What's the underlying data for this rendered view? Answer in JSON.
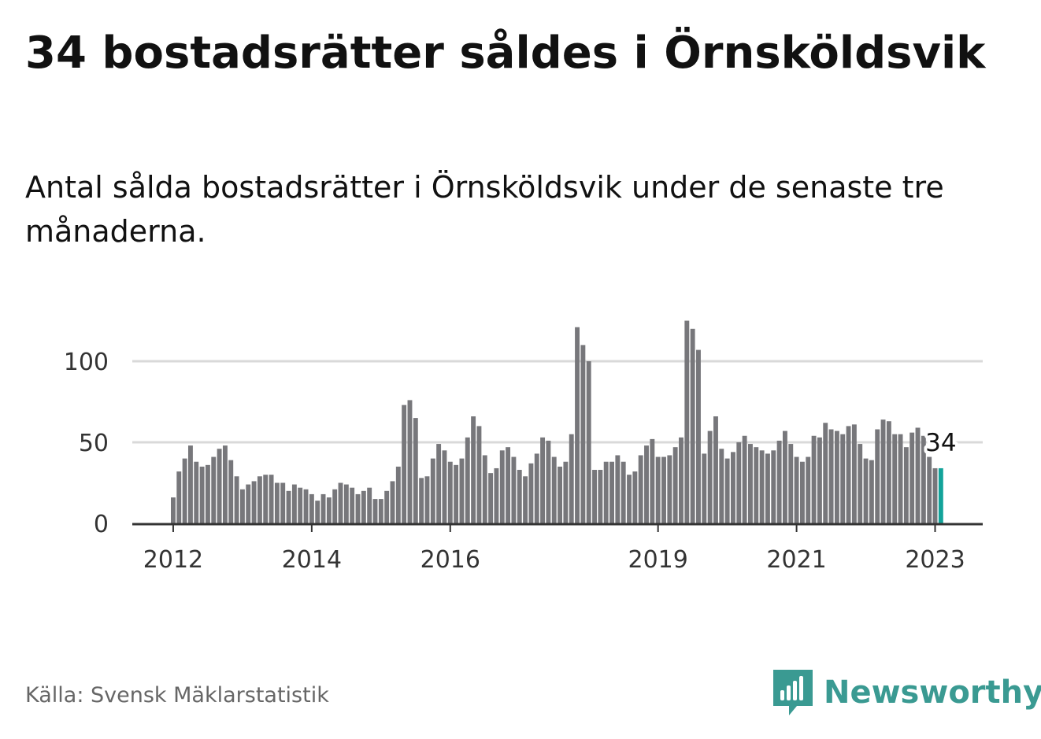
{
  "title": "34 bostadsrätter såldes i Örnsköldsvik",
  "subtitle": "Antal sålda bostadsrätter i Örnsköldsvik under de senaste tre månaderna.",
  "source": "Källa: Svensk Mäklarstatistik",
  "brand": {
    "name": "Newsworthy",
    "icon": "bar-chart-logo-icon"
  },
  "colors": {
    "bar": "#77777b",
    "highlight": "#13a39a",
    "grid": "#d9d9d9",
    "axis": "#333333",
    "brand": "#3a9a92"
  },
  "chart_data": {
    "type": "bar",
    "xlabel": "",
    "ylabel": "",
    "ylim": [
      0,
      125
    ],
    "yticks": [
      0,
      50,
      100
    ],
    "xticks": [
      "2012",
      "2014",
      "2016",
      "2019",
      "2021",
      "2023"
    ],
    "start_month": "2012-01",
    "highlight_label": "34",
    "grid": true,
    "values": [
      16,
      32,
      40,
      48,
      38,
      35,
      36,
      41,
      46,
      48,
      39,
      29,
      21,
      24,
      26,
      29,
      30,
      30,
      25,
      25,
      20,
      24,
      22,
      21,
      18,
      14,
      18,
      16,
      21,
      25,
      24,
      22,
      18,
      20,
      22,
      15,
      15,
      20,
      26,
      35,
      73,
      76,
      65,
      28,
      29,
      40,
      49,
      45,
      38,
      36,
      40,
      53,
      66,
      60,
      42,
      31,
      34,
      45,
      47,
      41,
      33,
      29,
      37,
      43,
      53,
      51,
      41,
      35,
      38,
      55,
      121,
      110,
      100,
      33,
      33,
      38,
      38,
      42,
      38,
      30,
      32,
      42,
      48,
      52,
      41,
      41,
      42,
      47,
      53,
      125,
      120,
      107,
      43,
      57,
      66,
      46,
      40,
      44,
      50,
      54,
      49,
      47,
      45,
      43,
      45,
      51,
      57,
      49,
      41,
      38,
      41,
      54,
      53,
      62,
      58,
      57,
      55,
      60,
      61,
      49,
      40,
      39,
      58,
      64,
      63,
      55,
      55,
      47,
      56,
      59,
      54,
      41,
      34,
      34
    ]
  }
}
